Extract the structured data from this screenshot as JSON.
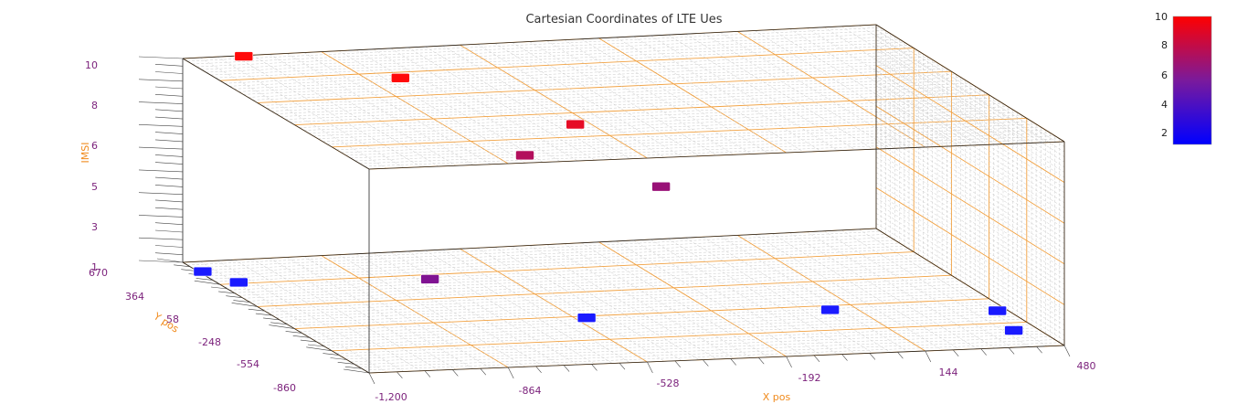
{
  "chart_data": {
    "type": "scatter3d",
    "title": "Cartesian Coordinates of LTE Ues",
    "xlabel": "X pos",
    "ylabel": "Y pos",
    "zlabel": "IMSI",
    "x_ticks": [
      "-1,200",
      "-864",
      "-528",
      "-192",
      "144",
      "480"
    ],
    "y_ticks": [
      "670",
      "364",
      "58",
      "-248",
      "-554",
      "-860"
    ],
    "z_ticks": [
      "1",
      "3",
      "5",
      "6",
      "8",
      "10"
    ],
    "xlim": [
      -1200,
      480
    ],
    "ylim": [
      -860,
      670
    ],
    "zlim": [
      1,
      10
    ],
    "grid": true,
    "colorbar": {
      "ticks": [
        "10",
        "8",
        "6",
        "4",
        "2"
      ],
      "range": [
        1,
        10
      ],
      "colors": [
        "#0000ff",
        "#ff0000"
      ],
      "placement": "top-right"
    },
    "point_color_low": "#1a1aff",
    "point_color_high": "#ff0a0a",
    "points": [
      {
        "x": -1055,
        "y": 660,
        "z": 10
      },
      {
        "x": -785,
        "y": 290,
        "z": 10
      },
      {
        "x": -480,
        "y": -110,
        "z": 9
      },
      {
        "x": -540,
        "y": 100,
        "z": 7
      },
      {
        "x": -265,
        "y": -85,
        "z": 6
      },
      {
        "x": -1050,
        "y": -850,
        "z": 5
      },
      {
        "x": -1190,
        "y": 540,
        "z": 1
      },
      {
        "x": -1150,
        "y": 380,
        "z": 1
      },
      {
        "x": -500,
        "y": -270,
        "z": 1
      },
      {
        "x": 80,
        "y": -300,
        "z": 1
      },
      {
        "x": 455,
        "y": -400,
        "z": 1
      },
      {
        "x": 420,
        "y": -650,
        "z": 1
      }
    ]
  }
}
